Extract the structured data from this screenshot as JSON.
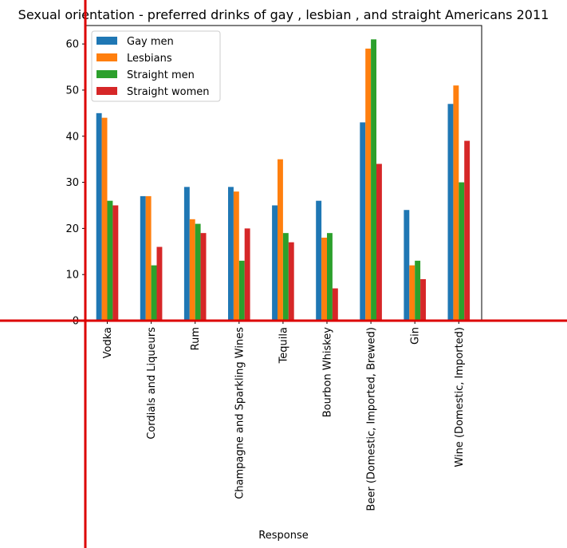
{
  "chart_data": {
    "type": "bar",
    "title": "Sexual orientation - preferred drinks of gay , lesbian , and straight Americans 2011",
    "xlabel": "Response",
    "ylabel": "",
    "categories": [
      "Vodka",
      "Cordials and Liqueurs",
      "Rum",
      "Champagne and Sparkling Wines",
      "Tequila",
      "Bourbon Whiskey",
      "Beer (Domestic, Imported, Brewed)",
      "Gin",
      "Wine (Domestic, Imported)"
    ],
    "series": [
      {
        "name": "Gay men",
        "color": "#1f77b4",
        "values": [
          45,
          27,
          29,
          29,
          25,
          26,
          43,
          24,
          47
        ]
      },
      {
        "name": "Lesbians",
        "color": "#ff7f0e",
        "values": [
          44,
          27,
          22,
          28,
          35,
          18,
          59,
          12,
          51
        ]
      },
      {
        "name": "Straight men",
        "color": "#2ca02c",
        "values": [
          26,
          12,
          21,
          13,
          19,
          19,
          61,
          13,
          30
        ]
      },
      {
        "name": "Straight women",
        "color": "#d62728",
        "values": [
          25,
          16,
          19,
          20,
          17,
          7,
          34,
          9,
          39
        ]
      }
    ],
    "yticks": [
      0,
      10,
      20,
      30,
      40,
      50,
      60
    ],
    "ylim": [
      0,
      64
    ],
    "grid": false,
    "legend": "upper left",
    "annotation_line_color": "#dd0000"
  }
}
